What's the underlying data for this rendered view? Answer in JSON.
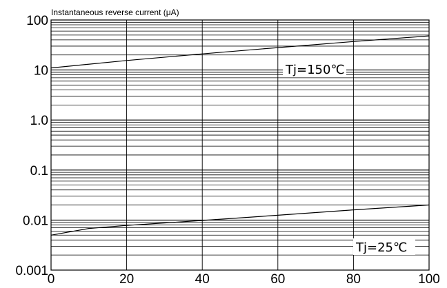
{
  "chart_data": {
    "type": "line",
    "title": "",
    "xlabel": "",
    "ylabel": "Instantaneous reverse current (μA)",
    "y_scale": "log",
    "xlim": [
      0,
      100
    ],
    "ylim": [
      0.001,
      100
    ],
    "grid": true,
    "x_ticks": [
      "0",
      "20",
      "40",
      "60",
      "80",
      "100"
    ],
    "y_ticks": [
      "0.001",
      "0.01",
      "0.1",
      "1.0",
      "10",
      "100"
    ],
    "series": [
      {
        "name": "Tj=150℃",
        "x": [
          0,
          20,
          40,
          60,
          80,
          100
        ],
        "y": [
          11,
          15.5,
          21,
          28,
          37,
          48
        ]
      },
      {
        "name": "Tj=25℃",
        "x": [
          0,
          10,
          20,
          40,
          60,
          80,
          100
        ],
        "y": [
          0.005,
          0.0068,
          0.0078,
          0.0098,
          0.0125,
          0.016,
          0.02
        ]
      }
    ],
    "colors": {
      "line": "#000000",
      "grid": "#000000",
      "background": "#ffffff"
    }
  }
}
